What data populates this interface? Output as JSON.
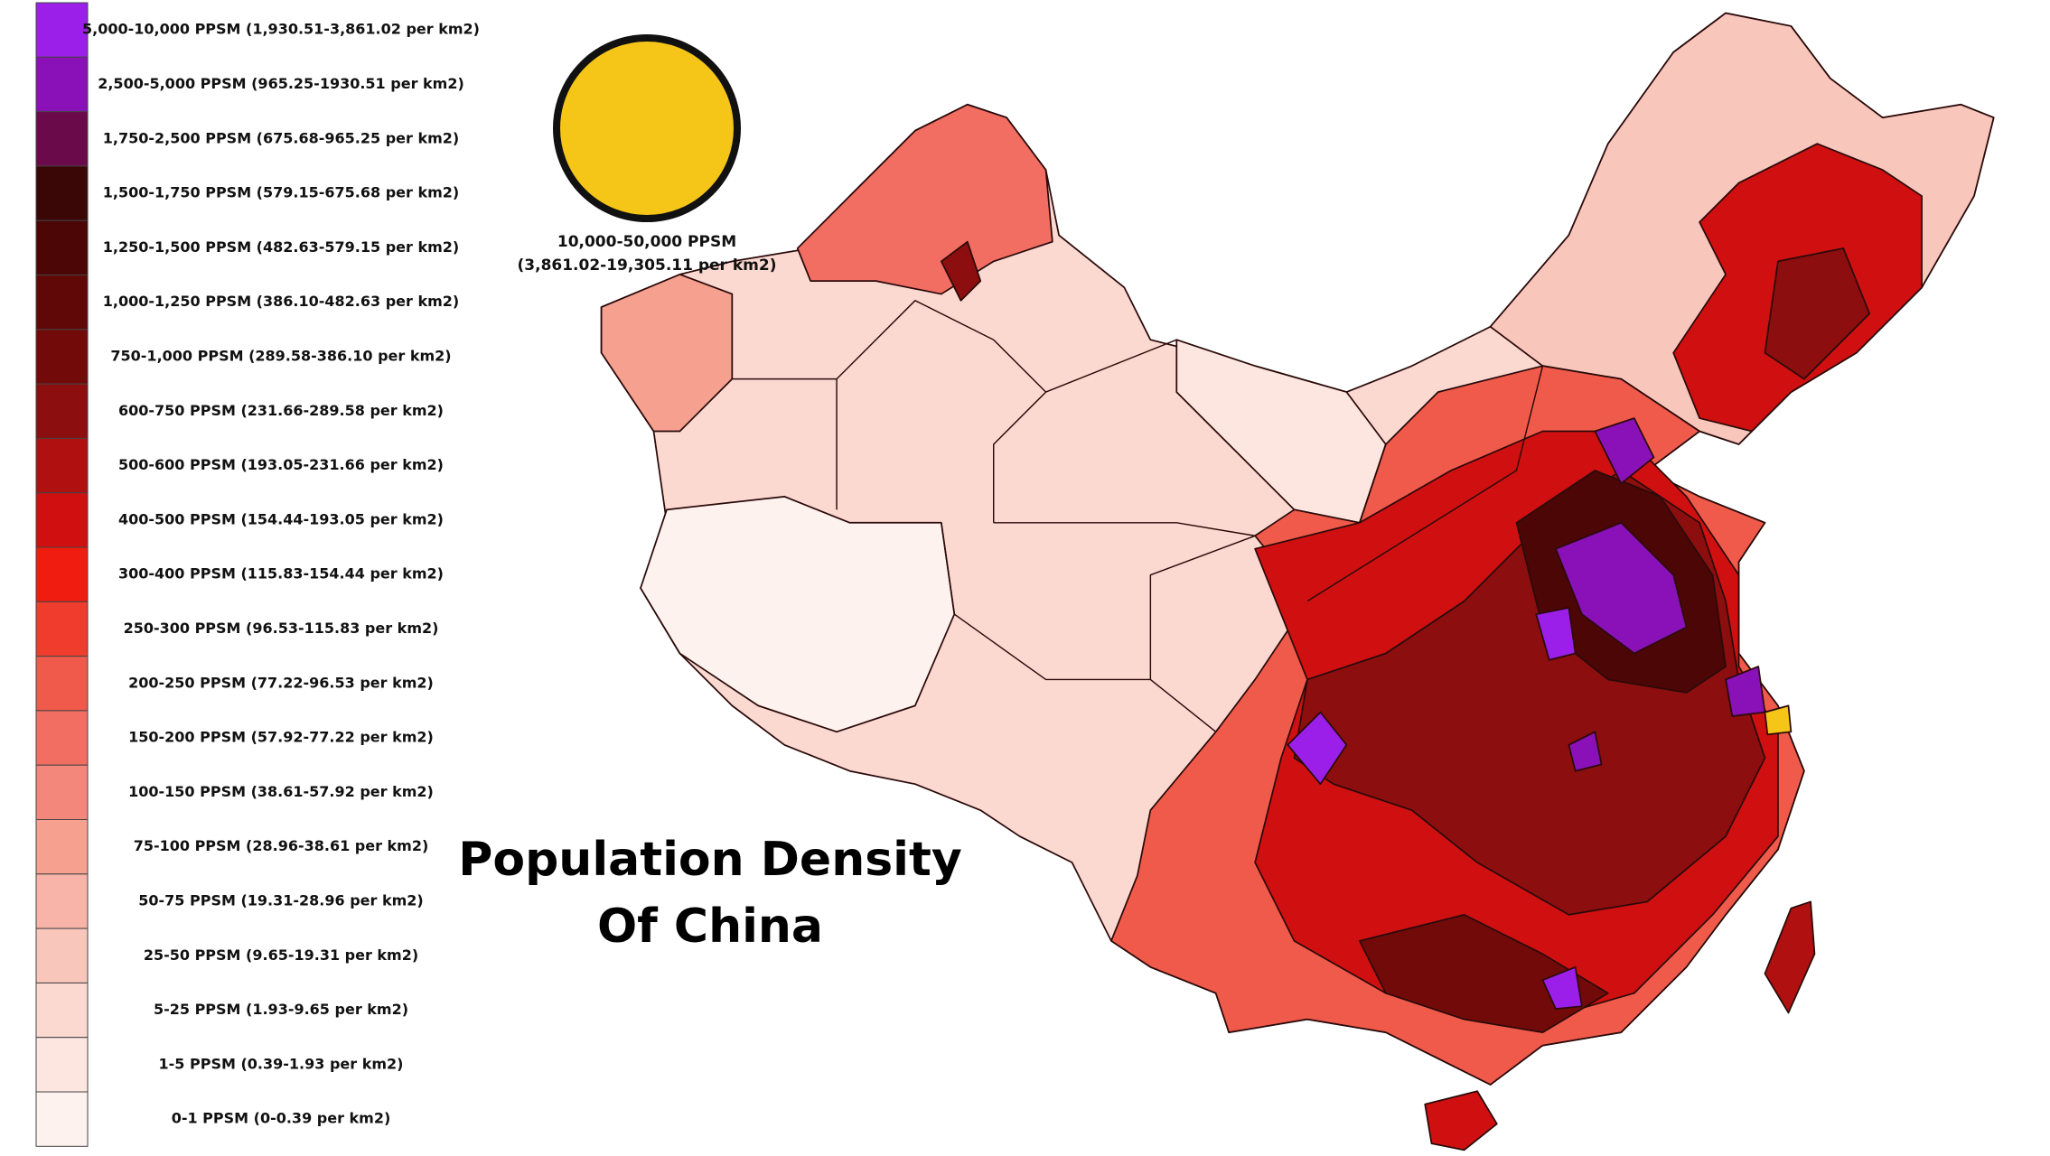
{
  "title": {
    "line1": "Population Density",
    "line2": "Of China"
  },
  "highlight": {
    "line1": "10,000-50,000 PPSM",
    "line2": "(3,861.02-19,305.11 per km2)",
    "color": "#f5c518"
  },
  "legend": {
    "items": [
      {
        "label": "5,000-10,000 PPSM (1,930.51-3,861.02 per km2)",
        "color": "#9b1fe8"
      },
      {
        "label": "2,500-5,000 PPSM (965.25-1930.51 per km2)",
        "color": "#8a10b8"
      },
      {
        "label": "1,750-2,500 PPSM (675.68-965.25 per km2)",
        "color": "#6a0a4a"
      },
      {
        "label": "1,500-1,750 PPSM (579.15-675.68 per km2)",
        "color": "#3a0606"
      },
      {
        "label": "1,250-1,500 PPSM (482.63-579.15 per km2)",
        "color": "#4d0606"
      },
      {
        "label": "1,000-1,250 PPSM (386.10-482.63 per km2)",
        "color": "#600808"
      },
      {
        "label": "750-1,000 PPSM (289.58-386.10 per km2)",
        "color": "#720a0a"
      },
      {
        "label": "600-750 PPSM (231.66-289.58 per km2)",
        "color": "#8c0e0e"
      },
      {
        "label": "500-600 PPSM (193.05-231.66 per km2)",
        "color": "#b01010"
      },
      {
        "label": "400-500 PPSM (154.44-193.05 per km2)",
        "color": "#d01010"
      },
      {
        "label": "300-400 PPSM (115.83-154.44 per km2)",
        "color": "#f01c10"
      },
      {
        "label": "250-300 PPSM (96.53-115.83 per km2)",
        "color": "#f03c2c"
      },
      {
        "label": "200-250 PPSM (77.22-96.53 per km2)",
        "color": "#f05a4a"
      },
      {
        "label": "150-200 PPSM (57.92-77.22 per km2)",
        "color": "#f26e62"
      },
      {
        "label": "100-150 PPSM (38.61-57.92 per km2)",
        "color": "#f4877c"
      },
      {
        "label": "75-100 PPSM (28.96-38.61 per km2)",
        "color": "#f6a090"
      },
      {
        "label": "50-75 PPSM (19.31-28.96 per km2)",
        "color": "#f8b4a8"
      },
      {
        "label": "25-50 PPSM (9.65-19.31 per km2)",
        "color": "#f9c6bc"
      },
      {
        "label": "5-25 PPSM (1.93-9.65 per km2)",
        "color": "#fbd8d0"
      },
      {
        "label": "1-5 PPSM (0.39-1.93 per km2)",
        "color": "#fde6e0"
      },
      {
        "label": "0-1 PPSM (0-0.39 per km2)",
        "color": "#fdf2ee"
      }
    ]
  }
}
